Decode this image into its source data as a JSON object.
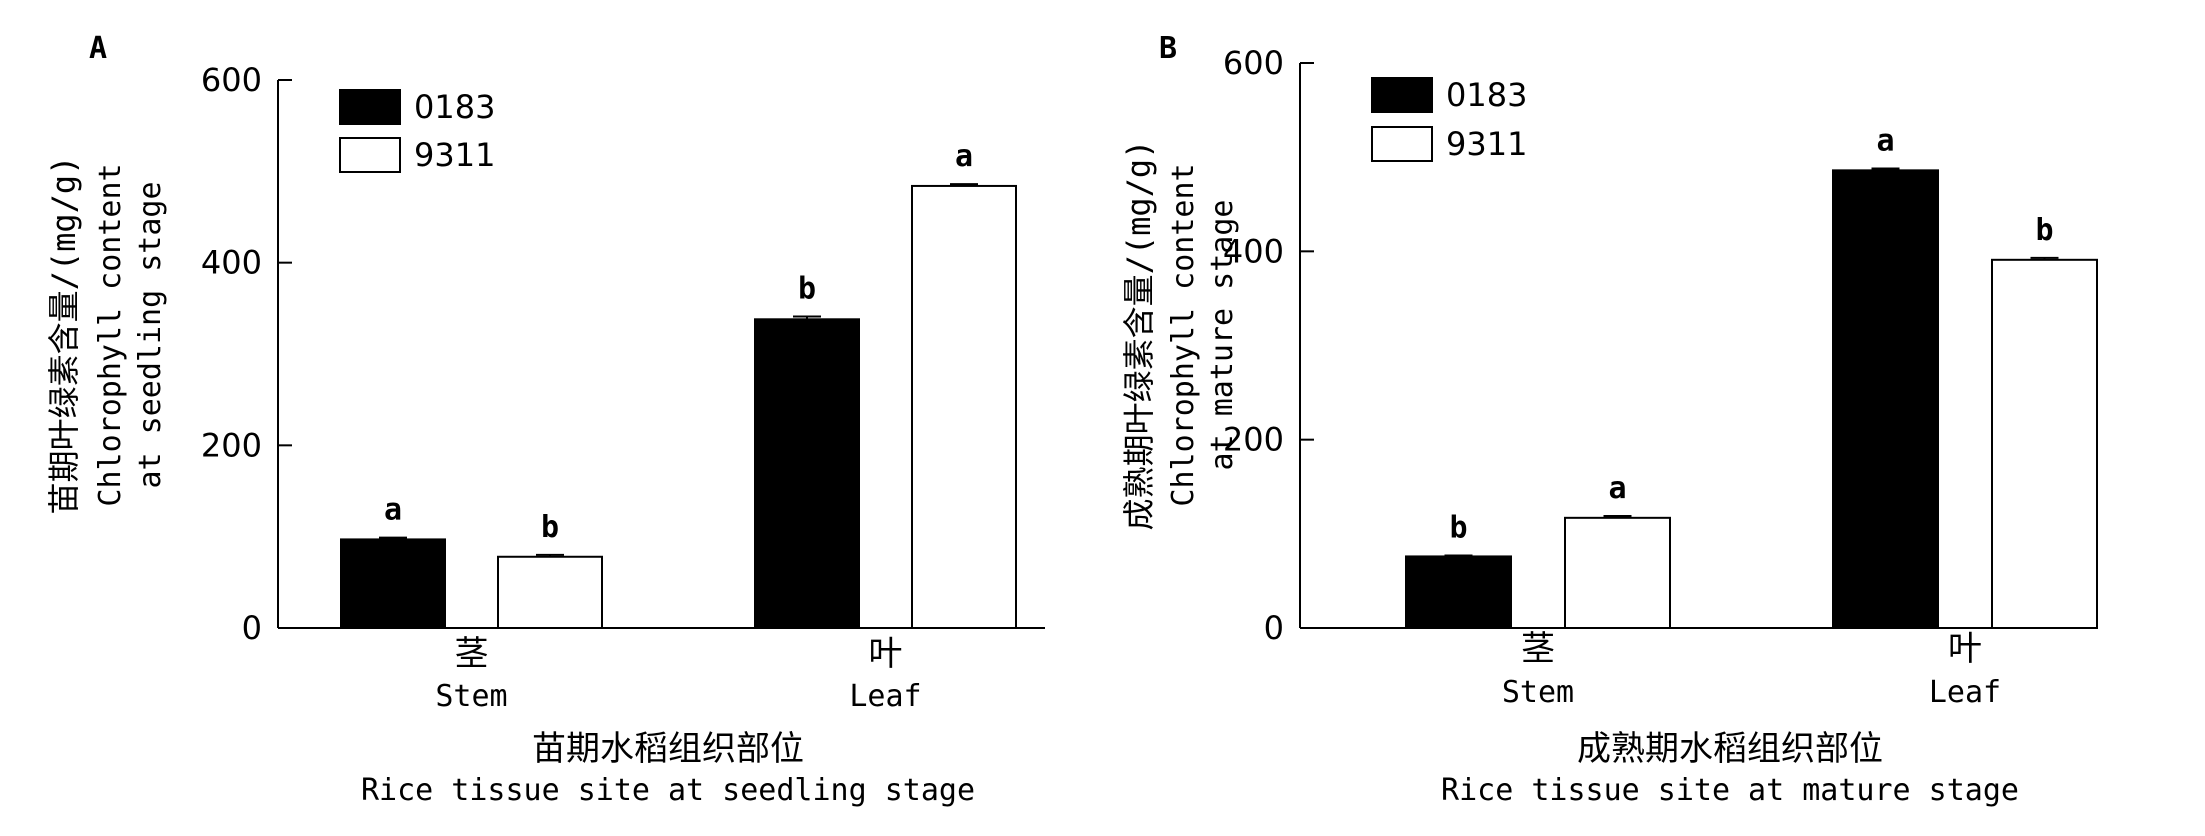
{
  "chart_data": [
    {
      "type": "bar",
      "panel_label": "A",
      "categories": [
        {
          "zh": "茎",
          "en": "Stem"
        },
        {
          "zh": "叶",
          "en": "Leaf"
        }
      ],
      "series": [
        {
          "name": "0183",
          "values": [
            97,
            338
          ],
          "letters": [
            "a",
            "b"
          ],
          "errors": [
            2,
            3
          ],
          "color": "#000000"
        },
        {
          "name": "9311",
          "values": [
            78,
            484
          ],
          "letters": [
            "b",
            "a"
          ],
          "errors": [
            2,
            2
          ],
          "color": "#ffffff"
        }
      ],
      "ylabel_zh": "苗期叶绿素含量/(mg/g)",
      "ylabel_en": [
        "Chlorophyll content",
        "at seedling stage"
      ],
      "xlabel_zh": "苗期水稻组织部位",
      "xlabel_en": "Rice tissue site at seedling stage",
      "ylim": [
        0,
        600
      ],
      "yticks": [
        "0",
        "200",
        "400",
        "600"
      ],
      "legend_position": "top-left",
      "grid": false
    },
    {
      "type": "bar",
      "panel_label": "B",
      "categories": [
        {
          "zh": "茎",
          "en": "Stem"
        },
        {
          "zh": "叶",
          "en": "Leaf"
        }
      ],
      "series": [
        {
          "name": "0183",
          "values": [
            76,
            486
          ],
          "letters": [
            "b",
            "a"
          ],
          "errors": [
            1,
            2
          ],
          "color": "#000000"
        },
        {
          "name": "9311",
          "values": [
            117,
            391
          ],
          "letters": [
            "a",
            "b"
          ],
          "errors": [
            2,
            2
          ],
          "color": "#ffffff"
        }
      ],
      "ylabel_zh": "成熟期叶绿素含量/(mg/g)",
      "ylabel_en": [
        "Chlorophyll content",
        "at mature stage"
      ],
      "xlabel_zh": "成熟期水稻组织部位",
      "xlabel_en": "Rice tissue site at mature stage",
      "ylim": [
        0,
        600
      ],
      "yticks": [
        "0",
        "200",
        "400",
        "600"
      ],
      "legend_position": "top-left",
      "grid": false
    }
  ]
}
